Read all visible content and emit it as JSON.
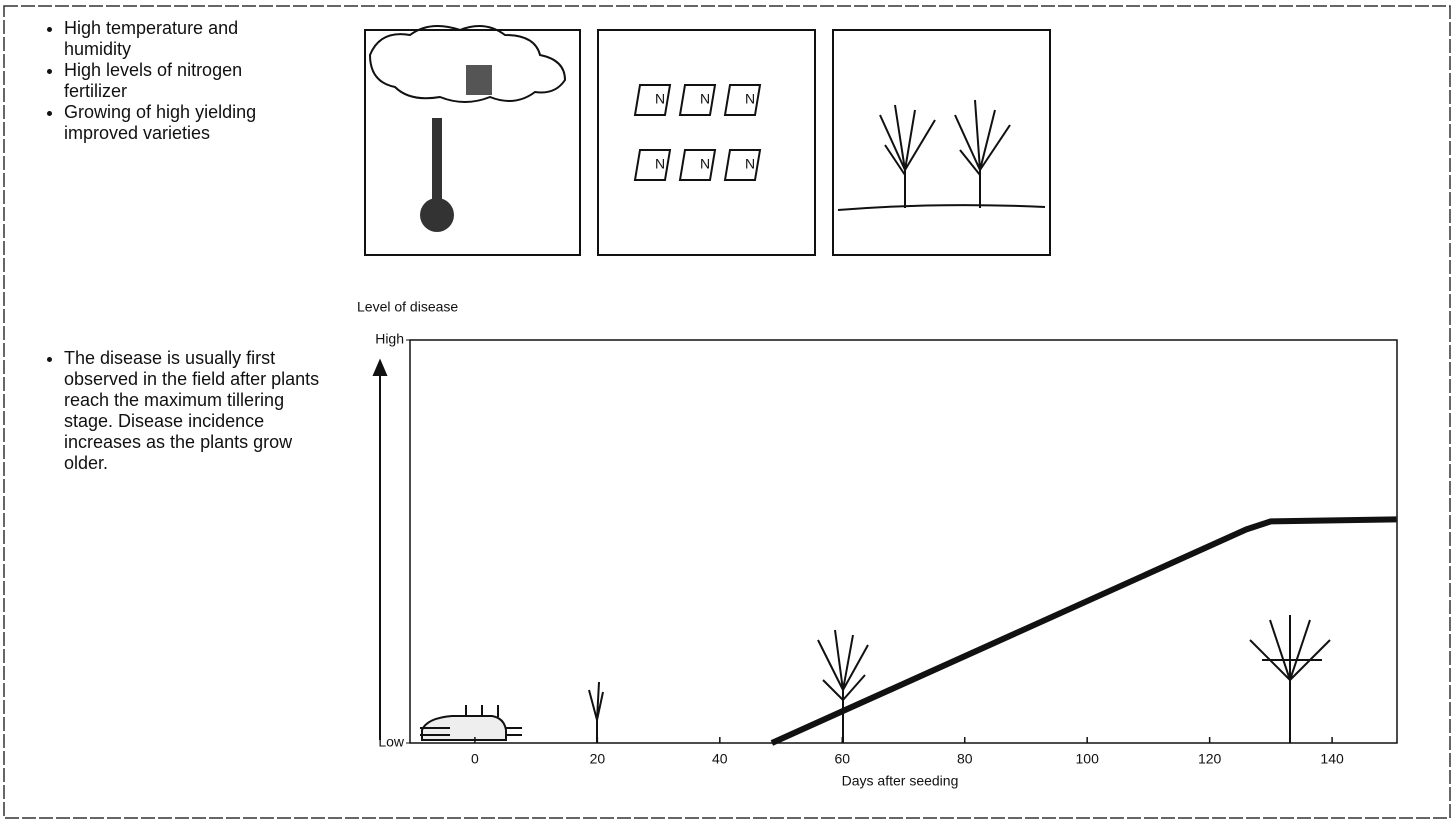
{
  "conditions": {
    "items": [
      "High temperature and humidity",
      "High levels of nitrogen fertilizer",
      "Growing of high yielding improved varieties"
    ]
  },
  "observation": {
    "text": "The disease is usually first observed in the field after plants reach the maximum tillering stage. Disease incidence increases as the plants grow older."
  },
  "chart_data": {
    "type": "line",
    "y_label": "Level of disease",
    "x_label": "Days after seeding",
    "x": [
      48.5,
      126,
      130,
      150.5
    ],
    "values": [
      0,
      0.53,
      0.55,
      0.555
    ],
    "color": "#111111",
    "xlim": [
      -10.6,
      150.6
    ],
    "xticks": [
      0,
      20,
      40,
      60,
      80,
      100,
      120,
      140
    ],
    "ylim": [
      0,
      1
    ],
    "yticks": [
      {
        "value": 0,
        "label": "Low"
      },
      {
        "value": 1,
        "label": "High"
      }
    ]
  }
}
